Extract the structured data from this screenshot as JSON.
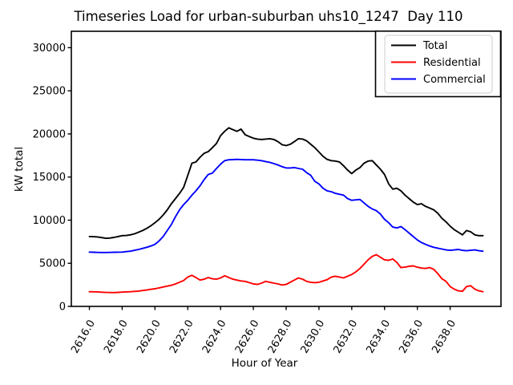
{
  "chart_data": {
    "type": "line",
    "title": "Timeseries Load for urban-suburban uhs10_1247  Day 110",
    "xlabel": "Hour of Year",
    "ylabel": "kW total",
    "xlim": [
      2614.9,
      2641.1
    ],
    "ylim": [
      0,
      31900
    ],
    "xticks": [
      2616,
      2618,
      2620,
      2622,
      2624,
      2626,
      2628,
      2630,
      2632,
      2634,
      2636,
      2638
    ],
    "xtick_labels": [
      "2616.0",
      "2618.0",
      "2620.0",
      "2622.0",
      "2624.0",
      "2626.0",
      "2628.0",
      "2630.0",
      "2632.0",
      "2634.0",
      "2636.0",
      "2638.0"
    ],
    "yticks": [
      0,
      5000,
      10000,
      15000,
      20000,
      25000,
      30000
    ],
    "ytick_labels": [
      "0",
      "5000",
      "10000",
      "15000",
      "20000",
      "25000",
      "30000"
    ],
    "grid": false,
    "legend": {
      "position": "upper right",
      "labels": [
        "Total",
        "Residential",
        "Commercial"
      ]
    },
    "axis_color": "#000000",
    "series": [
      {
        "name": "Total",
        "color": "#000000",
        "points": [
          [
            2616.0,
            8100
          ],
          [
            2616.25,
            8080
          ],
          [
            2616.5,
            8050
          ],
          [
            2616.75,
            7980
          ],
          [
            2617.0,
            7900
          ],
          [
            2617.25,
            7920
          ],
          [
            2617.5,
            8000
          ],
          [
            2617.75,
            8100
          ],
          [
            2618.0,
            8200
          ],
          [
            2618.25,
            8220
          ],
          [
            2618.5,
            8300
          ],
          [
            2618.75,
            8420
          ],
          [
            2619.0,
            8600
          ],
          [
            2619.25,
            8800
          ],
          [
            2619.5,
            9050
          ],
          [
            2619.75,
            9350
          ],
          [
            2620.0,
            9700
          ],
          [
            2620.25,
            10100
          ],
          [
            2620.5,
            10600
          ],
          [
            2620.75,
            11200
          ],
          [
            2621.0,
            11900
          ],
          [
            2621.25,
            12500
          ],
          [
            2621.5,
            13100
          ],
          [
            2621.75,
            13800
          ],
          [
            2622.0,
            15200
          ],
          [
            2622.25,
            16600
          ],
          [
            2622.5,
            16750
          ],
          [
            2622.75,
            17300
          ],
          [
            2623.0,
            17750
          ],
          [
            2623.25,
            17950
          ],
          [
            2623.5,
            18400
          ],
          [
            2623.75,
            18900
          ],
          [
            2624.0,
            19800
          ],
          [
            2624.25,
            20300
          ],
          [
            2624.5,
            20700
          ],
          [
            2624.75,
            20500
          ],
          [
            2625.0,
            20300
          ],
          [
            2625.25,
            20550
          ],
          [
            2625.5,
            19900
          ],
          [
            2625.75,
            19700
          ],
          [
            2626.0,
            19500
          ],
          [
            2626.25,
            19400
          ],
          [
            2626.5,
            19350
          ],
          [
            2626.75,
            19400
          ],
          [
            2627.0,
            19450
          ],
          [
            2627.25,
            19350
          ],
          [
            2627.5,
            19100
          ],
          [
            2627.75,
            18750
          ],
          [
            2628.0,
            18650
          ],
          [
            2628.25,
            18800
          ],
          [
            2628.5,
            19100
          ],
          [
            2628.75,
            19450
          ],
          [
            2629.0,
            19400
          ],
          [
            2629.25,
            19200
          ],
          [
            2629.5,
            18800
          ],
          [
            2629.75,
            18400
          ],
          [
            2630.0,
            17900
          ],
          [
            2630.25,
            17400
          ],
          [
            2630.5,
            17050
          ],
          [
            2630.75,
            16900
          ],
          [
            2631.0,
            16850
          ],
          [
            2631.25,
            16750
          ],
          [
            2631.5,
            16300
          ],
          [
            2631.75,
            15800
          ],
          [
            2632.0,
            15400
          ],
          [
            2632.25,
            15800
          ],
          [
            2632.5,
            16100
          ],
          [
            2632.75,
            16600
          ],
          [
            2633.0,
            16850
          ],
          [
            2633.25,
            16900
          ],
          [
            2633.5,
            16400
          ],
          [
            2633.75,
            15900
          ],
          [
            2634.0,
            15300
          ],
          [
            2634.25,
            14200
          ],
          [
            2634.5,
            13600
          ],
          [
            2634.75,
            13700
          ],
          [
            2635.0,
            13400
          ],
          [
            2635.25,
            12900
          ],
          [
            2635.5,
            12500
          ],
          [
            2635.75,
            12100
          ],
          [
            2636.0,
            11800
          ],
          [
            2636.25,
            11900
          ],
          [
            2636.5,
            11600
          ],
          [
            2636.75,
            11400
          ],
          [
            2637.0,
            11200
          ],
          [
            2637.25,
            10800
          ],
          [
            2637.5,
            10200
          ],
          [
            2637.75,
            9800
          ],
          [
            2638.0,
            9300
          ],
          [
            2638.25,
            8900
          ],
          [
            2638.5,
            8600
          ],
          [
            2638.75,
            8300
          ],
          [
            2639.0,
            8800
          ],
          [
            2639.25,
            8650
          ],
          [
            2639.5,
            8300
          ],
          [
            2639.75,
            8200
          ],
          [
            2640.0,
            8200
          ]
        ]
      },
      {
        "name": "Residential",
        "color": "#ff0000",
        "points": [
          [
            2616.0,
            1700
          ],
          [
            2616.25,
            1690
          ],
          [
            2616.5,
            1680
          ],
          [
            2616.75,
            1650
          ],
          [
            2617.0,
            1620
          ],
          [
            2617.25,
            1610
          ],
          [
            2617.5,
            1600
          ],
          [
            2617.75,
            1630
          ],
          [
            2618.0,
            1660
          ],
          [
            2618.25,
            1680
          ],
          [
            2618.5,
            1700
          ],
          [
            2618.75,
            1740
          ],
          [
            2619.0,
            1780
          ],
          [
            2619.25,
            1840
          ],
          [
            2619.5,
            1900
          ],
          [
            2619.75,
            1980
          ],
          [
            2620.0,
            2050
          ],
          [
            2620.25,
            2150
          ],
          [
            2620.5,
            2250
          ],
          [
            2620.75,
            2350
          ],
          [
            2621.0,
            2450
          ],
          [
            2621.25,
            2600
          ],
          [
            2621.5,
            2800
          ],
          [
            2621.75,
            3000
          ],
          [
            2622.0,
            3400
          ],
          [
            2622.25,
            3600
          ],
          [
            2622.5,
            3350
          ],
          [
            2622.75,
            3050
          ],
          [
            2623.0,
            3150
          ],
          [
            2623.25,
            3350
          ],
          [
            2623.5,
            3200
          ],
          [
            2623.75,
            3150
          ],
          [
            2624.0,
            3300
          ],
          [
            2624.25,
            3550
          ],
          [
            2624.5,
            3350
          ],
          [
            2624.75,
            3150
          ],
          [
            2625.0,
            3050
          ],
          [
            2625.25,
            2950
          ],
          [
            2625.5,
            2900
          ],
          [
            2625.75,
            2750
          ],
          [
            2626.0,
            2600
          ],
          [
            2626.25,
            2550
          ],
          [
            2626.5,
            2700
          ],
          [
            2626.75,
            2900
          ],
          [
            2627.0,
            2800
          ],
          [
            2627.25,
            2700
          ],
          [
            2627.5,
            2600
          ],
          [
            2627.75,
            2480
          ],
          [
            2628.0,
            2550
          ],
          [
            2628.25,
            2800
          ],
          [
            2628.5,
            3050
          ],
          [
            2628.75,
            3300
          ],
          [
            2629.0,
            3150
          ],
          [
            2629.25,
            2900
          ],
          [
            2629.5,
            2800
          ],
          [
            2629.75,
            2750
          ],
          [
            2630.0,
            2800
          ],
          [
            2630.25,
            2950
          ],
          [
            2630.5,
            3100
          ],
          [
            2630.75,
            3400
          ],
          [
            2631.0,
            3500
          ],
          [
            2631.25,
            3400
          ],
          [
            2631.5,
            3300
          ],
          [
            2631.75,
            3500
          ],
          [
            2632.0,
            3700
          ],
          [
            2632.25,
            4000
          ],
          [
            2632.5,
            4400
          ],
          [
            2632.75,
            4900
          ],
          [
            2633.0,
            5400
          ],
          [
            2633.25,
            5800
          ],
          [
            2633.5,
            6000
          ],
          [
            2633.75,
            5700
          ],
          [
            2634.0,
            5400
          ],
          [
            2634.25,
            5350
          ],
          [
            2634.5,
            5500
          ],
          [
            2634.75,
            5100
          ],
          [
            2635.0,
            4500
          ],
          [
            2635.25,
            4550
          ],
          [
            2635.5,
            4650
          ],
          [
            2635.75,
            4700
          ],
          [
            2636.0,
            4550
          ],
          [
            2636.25,
            4450
          ],
          [
            2636.5,
            4400
          ],
          [
            2636.75,
            4500
          ],
          [
            2637.0,
            4300
          ],
          [
            2637.25,
            3800
          ],
          [
            2637.5,
            3200
          ],
          [
            2637.75,
            2900
          ],
          [
            2638.0,
            2300
          ],
          [
            2638.25,
            2000
          ],
          [
            2638.5,
            1800
          ],
          [
            2638.75,
            1750
          ],
          [
            2639.0,
            2300
          ],
          [
            2639.25,
            2400
          ],
          [
            2639.5,
            2000
          ],
          [
            2639.75,
            1800
          ],
          [
            2640.0,
            1700
          ]
        ]
      },
      {
        "name": "Commercial",
        "color": "#0000ff",
        "points": [
          [
            2616.0,
            6300
          ],
          [
            2616.25,
            6280
          ],
          [
            2616.5,
            6260
          ],
          [
            2616.75,
            6250
          ],
          [
            2617.0,
            6250
          ],
          [
            2617.25,
            6260
          ],
          [
            2617.5,
            6280
          ],
          [
            2617.75,
            6290
          ],
          [
            2618.0,
            6300
          ],
          [
            2618.25,
            6350
          ],
          [
            2618.5,
            6400
          ],
          [
            2618.75,
            6500
          ],
          [
            2619.0,
            6600
          ],
          [
            2619.25,
            6720
          ],
          [
            2619.5,
            6850
          ],
          [
            2619.75,
            7000
          ],
          [
            2620.0,
            7200
          ],
          [
            2620.25,
            7600
          ],
          [
            2620.5,
            8100
          ],
          [
            2620.75,
            8800
          ],
          [
            2621.0,
            9500
          ],
          [
            2621.25,
            10400
          ],
          [
            2621.5,
            11200
          ],
          [
            2621.75,
            11800
          ],
          [
            2622.0,
            12300
          ],
          [
            2622.25,
            12900
          ],
          [
            2622.5,
            13400
          ],
          [
            2622.75,
            14000
          ],
          [
            2623.0,
            14700
          ],
          [
            2623.25,
            15300
          ],
          [
            2623.5,
            15450
          ],
          [
            2623.75,
            16000
          ],
          [
            2624.0,
            16500
          ],
          [
            2624.25,
            16900
          ],
          [
            2624.5,
            17000
          ],
          [
            2624.75,
            17020
          ],
          [
            2625.0,
            17050
          ],
          [
            2625.25,
            17030
          ],
          [
            2625.5,
            17000
          ],
          [
            2625.75,
            17000
          ],
          [
            2626.0,
            17000
          ],
          [
            2626.25,
            16950
          ],
          [
            2626.5,
            16900
          ],
          [
            2626.75,
            16800
          ],
          [
            2627.0,
            16700
          ],
          [
            2627.25,
            16550
          ],
          [
            2627.5,
            16400
          ],
          [
            2627.75,
            16200
          ],
          [
            2628.0,
            16050
          ],
          [
            2628.25,
            16050
          ],
          [
            2628.5,
            16100
          ],
          [
            2628.75,
            16000
          ],
          [
            2629.0,
            15900
          ],
          [
            2629.25,
            15500
          ],
          [
            2629.5,
            15200
          ],
          [
            2629.75,
            14500
          ],
          [
            2630.0,
            14200
          ],
          [
            2630.25,
            13700
          ],
          [
            2630.5,
            13400
          ],
          [
            2630.75,
            13300
          ],
          [
            2631.0,
            13100
          ],
          [
            2631.25,
            13000
          ],
          [
            2631.5,
            12900
          ],
          [
            2631.75,
            12500
          ],
          [
            2632.0,
            12300
          ],
          [
            2632.25,
            12350
          ],
          [
            2632.5,
            12400
          ],
          [
            2632.75,
            12000
          ],
          [
            2633.0,
            11600
          ],
          [
            2633.25,
            11300
          ],
          [
            2633.5,
            11100
          ],
          [
            2633.75,
            10700
          ],
          [
            2634.0,
            10100
          ],
          [
            2634.25,
            9700
          ],
          [
            2634.5,
            9200
          ],
          [
            2634.75,
            9100
          ],
          [
            2635.0,
            9250
          ],
          [
            2635.25,
            8900
          ],
          [
            2635.5,
            8500
          ],
          [
            2635.75,
            8100
          ],
          [
            2636.0,
            7700
          ],
          [
            2636.25,
            7400
          ],
          [
            2636.5,
            7200
          ],
          [
            2636.75,
            7000
          ],
          [
            2637.0,
            6850
          ],
          [
            2637.25,
            6750
          ],
          [
            2637.5,
            6650
          ],
          [
            2637.75,
            6550
          ],
          [
            2638.0,
            6500
          ],
          [
            2638.25,
            6550
          ],
          [
            2638.5,
            6600
          ],
          [
            2638.75,
            6500
          ],
          [
            2639.0,
            6450
          ],
          [
            2639.25,
            6500
          ],
          [
            2639.5,
            6550
          ],
          [
            2639.75,
            6450
          ],
          [
            2640.0,
            6400
          ]
        ]
      }
    ]
  }
}
